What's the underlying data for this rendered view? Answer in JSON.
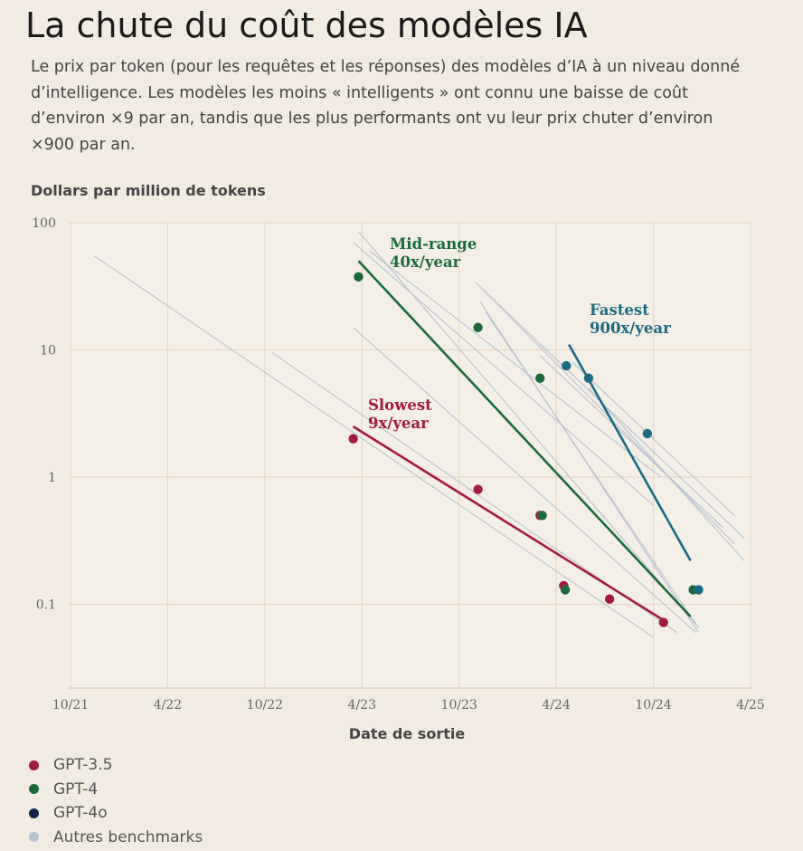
{
  "title": "La chute du coût des modèles IA",
  "subtitle": "Le prix par token (pour les requêtes et les réponses) des modèles d’IA à un niveau donné d’intelligence. Les modèles les moins « intelligents » ont connu une baisse de coût d’environ ×9 par an, tandis que les plus performants ont vu leur prix chuter d’environ ×900 par an.",
  "colors": {
    "background": "#f1ebe1",
    "grid": "#e8d7c4",
    "gpt35": "#a3193f",
    "gpt4": "#1b6b3a",
    "gpt4o": "#1c6b85",
    "benchmarks": "#b9c3d1"
  },
  "chart_data": {
    "type": "scatter",
    "ylabel": "Dollars par million de tokens",
    "xlabel": "Date de sortie",
    "x_ticks": [
      "10/21",
      "4/22",
      "10/22",
      "4/23",
      "10/23",
      "4/24",
      "10/24",
      "4/25"
    ],
    "x_tick_dates": [
      "2021-10",
      "2022-04",
      "2022-10",
      "2023-04",
      "2023-10",
      "2024-04",
      "2024-10",
      "2025-04"
    ],
    "y_ticks": [
      "100",
      "10",
      "1",
      "0.1"
    ],
    "y_tick_values": [
      100,
      10,
      1,
      0.1
    ],
    "y_scale": "log",
    "ylim": [
      0.027,
      100
    ],
    "xlim": [
      "2021-10",
      "2025-04"
    ],
    "grid": true,
    "legend_position": "bottom-left",
    "legend": [
      "GPT-3.5",
      "GPT-4",
      "GPT-4o",
      "Autres benchmarks"
    ],
    "series": [
      {
        "name": "GPT-3.5",
        "points": [
          {
            "x": "2023-03-15",
            "y": 2.0
          },
          {
            "x": "2023-11-06",
            "y": 0.8
          },
          {
            "x": "2024-03-01",
            "y": 0.5
          },
          {
            "x": "2024-04-15",
            "y": 0.14
          },
          {
            "x": "2024-07-10",
            "y": 0.11
          },
          {
            "x": "2024-10-20",
            "y": 0.072
          }
        ]
      },
      {
        "name": "GPT-4",
        "points": [
          {
            "x": "2023-03-25",
            "y": 37.5
          },
          {
            "x": "2023-11-06",
            "y": 15.0
          },
          {
            "x": "2024-03-01",
            "y": 6.0
          },
          {
            "x": "2024-03-05",
            "y": 0.5
          },
          {
            "x": "2024-04-18",
            "y": 0.13
          },
          {
            "x": "2024-12-15",
            "y": 0.13
          }
        ]
      },
      {
        "name": "GPT-4o",
        "points": [
          {
            "x": "2024-04-20",
            "y": 7.5
          },
          {
            "x": "2024-06-01",
            "y": 6.0
          },
          {
            "x": "2024-09-20",
            "y": 2.2
          },
          {
            "x": "2024-12-25",
            "y": 0.13
          }
        ]
      }
    ],
    "trend_lines": [
      {
        "label": "Slowest",
        "rate": "9x/year",
        "series": "GPT-3.5",
        "from": {
          "x": "2023-03-15",
          "y": 2.5
        },
        "to": {
          "x": "2024-10-20",
          "y": 0.075
        }
      },
      {
        "label": "Mid-range",
        "rate": "40x/year",
        "series": "GPT-4",
        "from": {
          "x": "2023-03-25",
          "y": 50
        },
        "to": {
          "x": "2024-12-10",
          "y": 0.08
        }
      },
      {
        "label": "Fastest",
        "rate": "900x/year",
        "series": "GPT-4o",
        "from": {
          "x": "2024-04-25",
          "y": 11
        },
        "to": {
          "x": "2024-12-10",
          "y": 0.22
        }
      }
    ],
    "benchmark_lines": [
      {
        "from": {
          "x": "2021-11-15",
          "y": 55
        },
        "to": {
          "x": "2024-10-01",
          "y": 0.055
        }
      },
      {
        "from": {
          "x": "2022-10-15",
          "y": 9.5
        },
        "to": {
          "x": "2024-11-15",
          "y": 0.06
        }
      },
      {
        "from": {
          "x": "2023-03-15",
          "y": 15
        },
        "to": {
          "x": "2024-12-20",
          "y": 0.06
        }
      },
      {
        "from": {
          "x": "2023-03-25",
          "y": 85
        },
        "to": {
          "x": "2024-12-20",
          "y": 0.07
        }
      },
      {
        "from": {
          "x": "2023-03-15",
          "y": 70
        },
        "to": {
          "x": "2024-10-01",
          "y": 0.6
        }
      },
      {
        "from": {
          "x": "2023-04-15",
          "y": 60
        },
        "to": {
          "x": "2024-10-15",
          "y": 1.0
        }
      },
      {
        "from": {
          "x": "2023-11-15",
          "y": 30
        },
        "to": {
          "x": "2025-03-01",
          "y": 0.3
        }
      },
      {
        "from": {
          "x": "2023-11-01",
          "y": 34
        },
        "to": {
          "x": "2025-03-20",
          "y": 0.33
        }
      },
      {
        "from": {
          "x": "2023-11-10",
          "y": 24
        },
        "to": {
          "x": "2024-12-25",
          "y": 0.06
        }
      },
      {
        "from": {
          "x": "2023-11-20",
          "y": 20
        },
        "to": {
          "x": "2024-12-25",
          "y": 0.065
        }
      },
      {
        "from": {
          "x": "2024-03-01",
          "y": 9
        },
        "to": {
          "x": "2025-02-10",
          "y": 0.4
        }
      },
      {
        "from": {
          "x": "2024-05-01",
          "y": 8
        },
        "to": {
          "x": "2025-03-01",
          "y": 0.5
        }
      },
      {
        "from": {
          "x": "2024-06-01",
          "y": 5
        },
        "to": {
          "x": "2025-03-20",
          "y": 0.22
        }
      }
    ],
    "annotations": [
      {
        "text": "Mid-range",
        "color": "gpt4"
      },
      {
        "text": "40x/year",
        "color": "gpt4"
      },
      {
        "text": "Fastest",
        "color": "gpt4o"
      },
      {
        "text": "900x/year",
        "color": "gpt4o"
      },
      {
        "text": "Slowest",
        "color": "gpt35"
      },
      {
        "text": "9x/year",
        "color": "gpt35"
      }
    ]
  }
}
